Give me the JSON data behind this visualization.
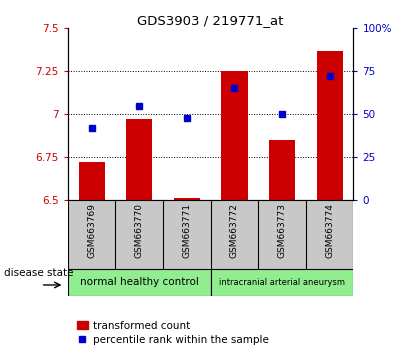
{
  "title": "GDS3903 / 219771_at",
  "samples": [
    "GSM663769",
    "GSM663770",
    "GSM663771",
    "GSM663772",
    "GSM663773",
    "GSM663774"
  ],
  "red_values": [
    6.72,
    6.97,
    6.51,
    7.25,
    6.85,
    7.37
  ],
  "blue_values": [
    42,
    55,
    48,
    65,
    50,
    72
  ],
  "red_base": 6.5,
  "ylim_left": [
    6.5,
    7.5
  ],
  "ylim_right": [
    0,
    100
  ],
  "yticks_left": [
    6.5,
    6.75,
    7.0,
    7.25,
    7.5
  ],
  "yticks_right": [
    0,
    25,
    50,
    75,
    100
  ],
  "ytick_labels_left": [
    "6.5",
    "6.75",
    "7",
    "7.25",
    "7.5"
  ],
  "ytick_labels_right": [
    "0",
    "25",
    "50",
    "75",
    "100%"
  ],
  "hgrid_values": [
    6.75,
    7.0,
    7.25
  ],
  "group1_label": "normal healthy control",
  "group2_label": "intracranial arterial aneurysm",
  "group_color": "#90EE90",
  "disease_state_label": "disease state",
  "legend_red": "transformed count",
  "legend_blue": "percentile rank within the sample",
  "bar_color": "#CC0000",
  "dot_color": "#0000CC",
  "background_xticklabel": "#C8C8C8"
}
